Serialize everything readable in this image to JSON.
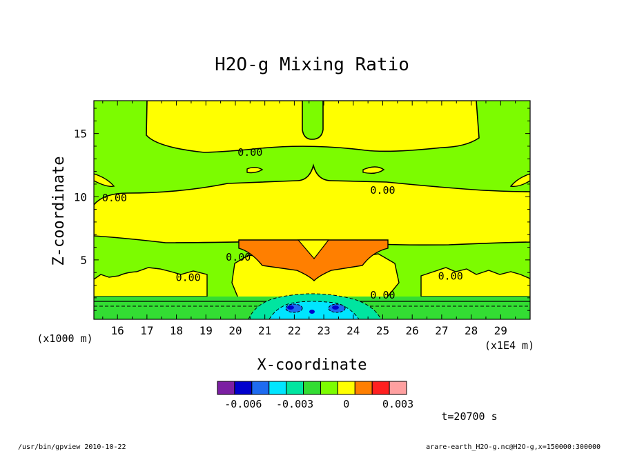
{
  "chart_data": {
    "type": "heatmap",
    "title": "H2O-g Mixing Ratio",
    "xlabel": "X-coordinate",
    "ylabel": "Z-coordinate",
    "x_unit_note": "(x1E4 m)",
    "y_unit_note": "(x1000 m)",
    "xlim": [
      15.2,
      30.0
    ],
    "ylim": [
      0.3,
      17.6
    ],
    "xticks": [
      16,
      17,
      18,
      19,
      20,
      21,
      22,
      23,
      24,
      25,
      26,
      27,
      28,
      29
    ],
    "xtick_labels": [
      "16",
      "17",
      "18",
      "19",
      "20",
      "21",
      "22",
      "23",
      "24",
      "25",
      "26",
      "27",
      "28",
      "29"
    ],
    "yticks": [
      5,
      10,
      15
    ],
    "ytick_labels": [
      "5",
      "10",
      "15"
    ],
    "contour_labels": [
      {
        "text": "0.00",
        "x": 20.5,
        "z": 13.5
      },
      {
        "text": "0.00",
        "x": 25.0,
        "z": 10.5
      },
      {
        "text": "0.00",
        "x": 15.9,
        "z": 9.9
      },
      {
        "text": "0.00",
        "x": 20.1,
        "z": 5.2
      },
      {
        "text": "0.00",
        "x": 18.4,
        "z": 3.6
      },
      {
        "text": "0.00",
        "x": 27.3,
        "z": 3.7
      },
      {
        "text": "0.00",
        "x": 25.0,
        "z": 2.2
      }
    ],
    "colorbar": {
      "colors": [
        "#7b1fa2",
        "#0000cd",
        "#1e6bf0",
        "#00e5ff",
        "#00e5a0",
        "#33dd33",
        "#7cfc00",
        "#ffff00",
        "#ff7f00",
        "#ff2020",
        "#ffa0a0"
      ],
      "tick_labels": [
        "-0.006",
        "-0.003",
        "0",
        "0.003"
      ],
      "tick_values": [
        -0.006,
        -0.003,
        0,
        0.003
      ],
      "range": [
        -0.0075,
        0.0035
      ]
    },
    "grid": false,
    "legend": "colorbar below plot"
  },
  "time_label": "t=20700 s",
  "footer": {
    "left": "/usr/bin/gpview   2010-10-22",
    "right": "arare-earth_H2O-g.nc@H2O-g,x=150000:300000"
  }
}
